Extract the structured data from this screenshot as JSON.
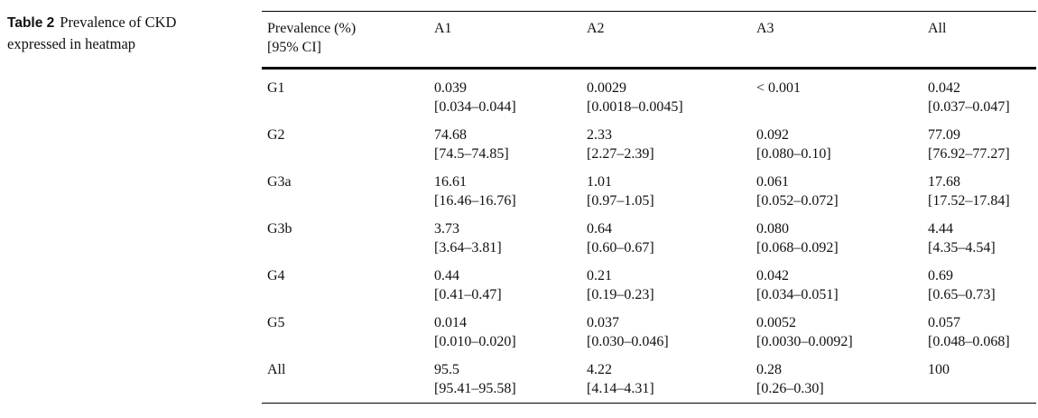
{
  "caption": {
    "label": "Table 2",
    "text": "Prevalence of CKD expressed in heatmap"
  },
  "table": {
    "header": {
      "stub_line1": "Prevalence (%)",
      "stub_line2": "[95% CI]",
      "columns": [
        "A1",
        "A2",
        "A3",
        "All"
      ]
    },
    "rows": [
      {
        "label": "G1",
        "cells": [
          {
            "value": "0.039",
            "ci": "[0.034–0.044]"
          },
          {
            "value": "0.0029",
            "ci": "[0.0018–0.0045]"
          },
          {
            "value": "< 0.001",
            "ci": ""
          },
          {
            "value": "0.042",
            "ci": "[0.037–0.047]"
          }
        ]
      },
      {
        "label": "G2",
        "cells": [
          {
            "value": "74.68",
            "ci": "[74.5–74.85]"
          },
          {
            "value": "2.33",
            "ci": "[2.27–2.39]"
          },
          {
            "value": "0.092",
            "ci": "[0.080–0.10]"
          },
          {
            "value": "77.09",
            "ci": "[76.92–77.27]"
          }
        ]
      },
      {
        "label": "G3a",
        "cells": [
          {
            "value": "16.61",
            "ci": "[16.46–16.76]"
          },
          {
            "value": "1.01",
            "ci": "[0.97–1.05]"
          },
          {
            "value": "0.061",
            "ci": "[0.052–0.072]"
          },
          {
            "value": "17.68",
            "ci": "[17.52–17.84]"
          }
        ]
      },
      {
        "label": "G3b",
        "cells": [
          {
            "value": "3.73",
            "ci": "[3.64–3.81]"
          },
          {
            "value": "0.64",
            "ci": "[0.60–0.67]"
          },
          {
            "value": "0.080",
            "ci": "[0.068–0.092]"
          },
          {
            "value": "4.44",
            "ci": "[4.35–4.54]"
          }
        ]
      },
      {
        "label": "G4",
        "cells": [
          {
            "value": "0.44",
            "ci": "[0.41–0.47]"
          },
          {
            "value": "0.21",
            "ci": "[0.19–0.23]"
          },
          {
            "value": "0.042",
            "ci": "[0.034–0.051]"
          },
          {
            "value": "0.69",
            "ci": "[0.65–0.73]"
          }
        ]
      },
      {
        "label": "G5",
        "cells": [
          {
            "value": "0.014",
            "ci": "[0.010–0.020]"
          },
          {
            "value": "0.037",
            "ci": "[0.030–0.046]"
          },
          {
            "value": "0.0052",
            "ci": "[0.0030–0.0092]"
          },
          {
            "value": "0.057",
            "ci": "[0.048–0.068]"
          }
        ]
      },
      {
        "label": "All",
        "cells": [
          {
            "value": "95.5",
            "ci": "[95.41–95.58]"
          },
          {
            "value": "4.22",
            "ci": "[4.14–4.31]"
          },
          {
            "value": "0.28",
            "ci": "[0.26–0.30]"
          },
          {
            "value": "100",
            "ci": ""
          }
        ]
      }
    ]
  }
}
